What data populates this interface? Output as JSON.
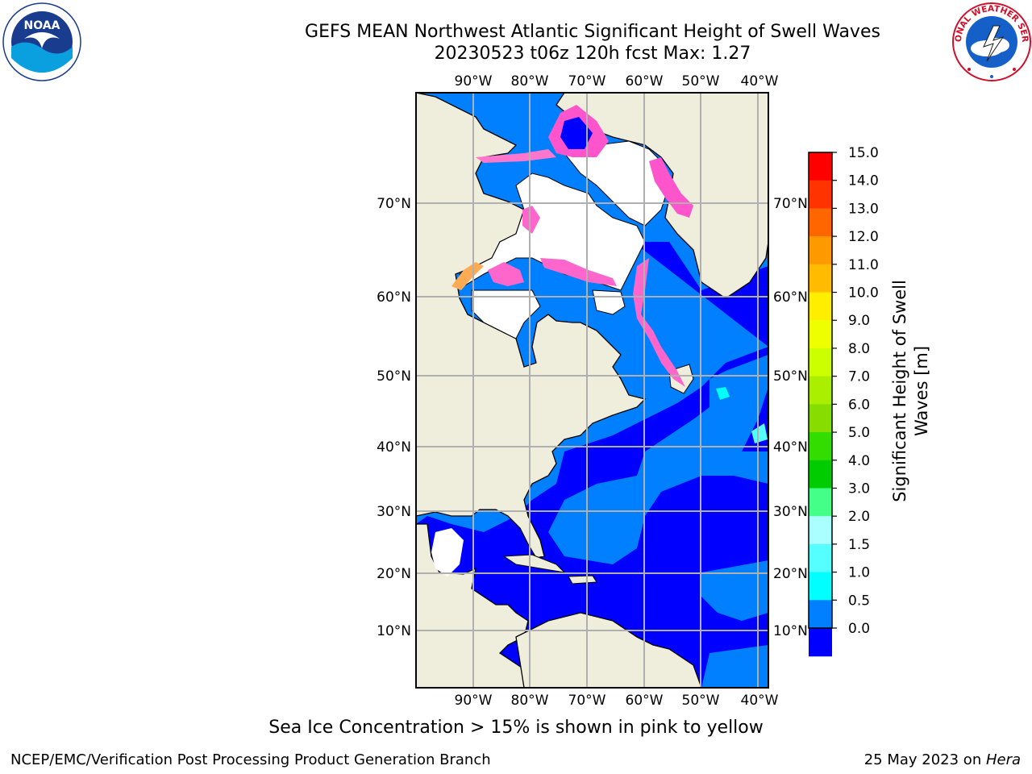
{
  "title_line1": "GEFS MEAN Northwest Atlantic Significant Height of Swell Waves",
  "title_line2": "20230523 t06z 120h fcst   Max: 1.27",
  "logos": {
    "left": {
      "icon": "noaa-logo",
      "text": "NOAA"
    },
    "right": {
      "icon": "national-weather-service-logo",
      "text": "NATIONAL WEATHER SERVICE"
    }
  },
  "map": {
    "lon_ticks": [
      "90°W",
      "80°W",
      "70°W",
      "60°W",
      "50°W",
      "40°W"
    ],
    "lat_ticks": [
      "70°N",
      "60°N",
      "50°N",
      "40°N",
      "30°N",
      "20°N",
      "10°N"
    ],
    "colors": {
      "land": "#efeddc",
      "ice_free_white": "#ffffff",
      "ocean_low": "#0000ff",
      "ocean_mid": "#0080ff",
      "ice_pink": "#ff66cc",
      "grid": "#b0b0b0"
    }
  },
  "colorbar": {
    "title": "Significant Height of Swell Waves [m]",
    "title_line1": "Significant Height of Swell",
    "title_line2": "Waves [m]",
    "ticks": [
      "15.0",
      "14.0",
      "13.0",
      "12.0",
      "11.0",
      "10.0",
      "9.0",
      "8.0",
      "7.0",
      "6.0",
      "5.0",
      "4.0",
      "3.0",
      "2.0",
      "1.5",
      "1.0",
      "0.5",
      "0.0"
    ],
    "bin_colors": [
      "#ff0000",
      "#ff3300",
      "#ff6600",
      "#ff9900",
      "#ffbb00",
      "#ffee00",
      "#eeff00",
      "#ccff00",
      "#aaee00",
      "#88dd00",
      "#33dd00",
      "#00cc00",
      "#44ff88",
      "#aaffff",
      "#55ffff",
      "#00ffff",
      "#0080ff",
      "#0000ff"
    ]
  },
  "footer": {
    "note": "Sea Ice Concentration > 15% is shown in pink to yellow",
    "credit_left": "NCEP/EMC/Verification Post Processing Product Generation Branch",
    "credit_right_prefix": "25 May 2023 on ",
    "credit_right_host": "Hera"
  }
}
